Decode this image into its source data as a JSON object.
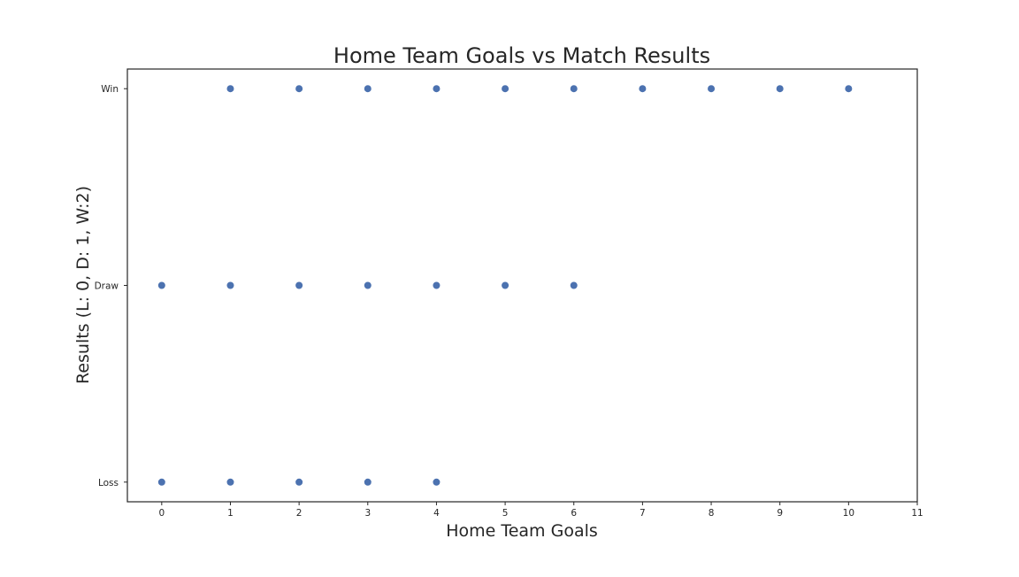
{
  "chart_data": {
    "type": "scatter",
    "title": "Home Team Goals vs Match Results",
    "xlabel": "Home Team Goals",
    "ylabel": "Results (L: 0, D: 1, W:2)",
    "xlim": [
      -0.5,
      11
    ],
    "ylim": [
      -0.1,
      2.1
    ],
    "x_ticks": [
      0,
      1,
      2,
      3,
      4,
      5,
      6,
      7,
      8,
      9,
      10,
      11
    ],
    "y_ticks": [
      {
        "value": 0,
        "label": "Loss"
      },
      {
        "value": 1,
        "label": "Draw"
      },
      {
        "value": 2,
        "label": "Win"
      }
    ],
    "grid": false,
    "colors": {
      "marker": "#4c72b0",
      "axes": "#262626",
      "text": "#262626"
    },
    "points": [
      {
        "x": 1,
        "y": 2
      },
      {
        "x": 2,
        "y": 2
      },
      {
        "x": 3,
        "y": 2
      },
      {
        "x": 4,
        "y": 2
      },
      {
        "x": 5,
        "y": 2
      },
      {
        "x": 6,
        "y": 2
      },
      {
        "x": 7,
        "y": 2
      },
      {
        "x": 8,
        "y": 2
      },
      {
        "x": 9,
        "y": 2
      },
      {
        "x": 10,
        "y": 2
      },
      {
        "x": 0,
        "y": 1
      },
      {
        "x": 1,
        "y": 1
      },
      {
        "x": 2,
        "y": 1
      },
      {
        "x": 3,
        "y": 1
      },
      {
        "x": 4,
        "y": 1
      },
      {
        "x": 5,
        "y": 1
      },
      {
        "x": 6,
        "y": 1
      },
      {
        "x": 0,
        "y": 0
      },
      {
        "x": 1,
        "y": 0
      },
      {
        "x": 2,
        "y": 0
      },
      {
        "x": 3,
        "y": 0
      },
      {
        "x": 4,
        "y": 0
      }
    ]
  }
}
